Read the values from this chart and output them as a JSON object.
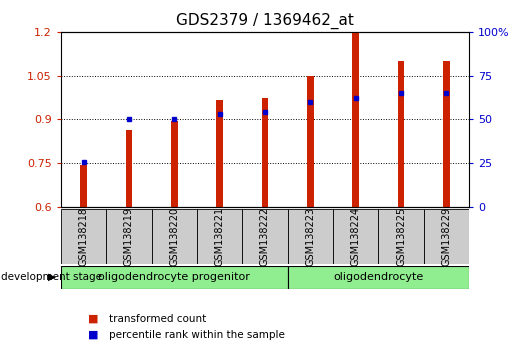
{
  "title": "GDS2379 / 1369462_at",
  "samples": [
    "GSM138218",
    "GSM138219",
    "GSM138220",
    "GSM138221",
    "GSM138222",
    "GSM138223",
    "GSM138224",
    "GSM138225",
    "GSM138229"
  ],
  "transformed_count": [
    0.745,
    0.865,
    0.895,
    0.965,
    0.975,
    1.05,
    1.195,
    1.1,
    1.1
  ],
  "percentile_rank": [
    26,
    50,
    50,
    53,
    54,
    60,
    62,
    65,
    65
  ],
  "bar_color": "#cc2200",
  "dot_color": "#0000cc",
  "ylim_left": [
    0.6,
    1.2
  ],
  "ylim_right": [
    0,
    100
  ],
  "yticks_left": [
    0.6,
    0.75,
    0.9,
    1.05,
    1.2
  ],
  "ytick_labels_left": [
    "0.6",
    "0.75",
    "0.9",
    "1.05",
    "1.2"
  ],
  "yticks_right": [
    0,
    25,
    50,
    75,
    100
  ],
  "ytick_labels_right": [
    "0",
    "25",
    "50",
    "75",
    "100%"
  ],
  "groups": [
    {
      "label": "oligodendrocyte progenitor",
      "indices": [
        0,
        1,
        2,
        3,
        4
      ],
      "color": "#90ee90"
    },
    {
      "label": "oligodendrocyte",
      "indices": [
        5,
        6,
        7,
        8
      ],
      "color": "#90ee90"
    }
  ],
  "dev_stage_label": "development stage",
  "legend_items": [
    {
      "label": "transformed count",
      "color": "#cc2200"
    },
    {
      "label": "percentile rank within the sample",
      "color": "#0000cc"
    }
  ],
  "bar_width": 0.15,
  "background_bar": "#cccccc",
  "title_fontsize": 11,
  "tick_fontsize": 8,
  "sample_fontsize": 7,
  "group_fontsize": 8
}
